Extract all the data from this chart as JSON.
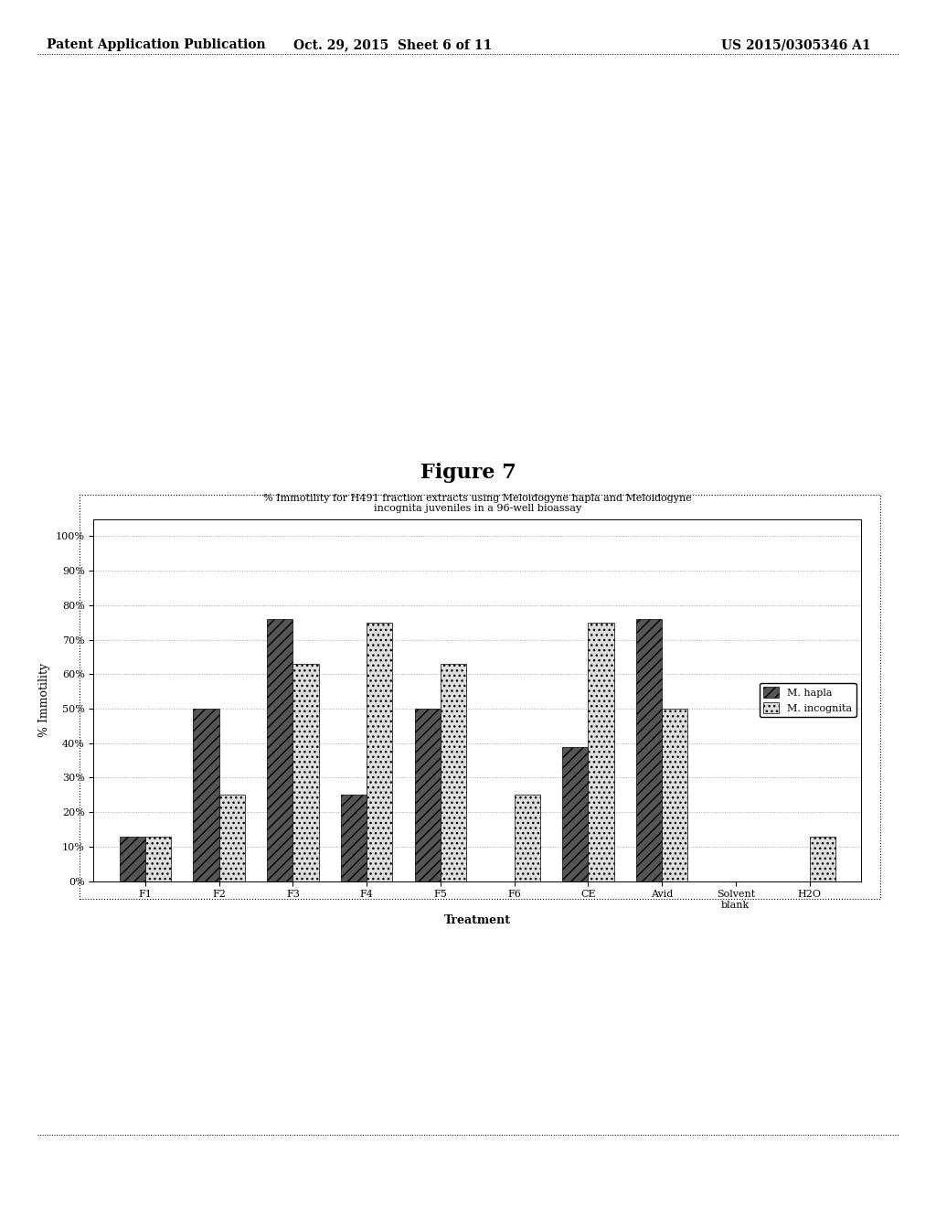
{
  "figure_title": "Figure 7",
  "chart_title": "% Immotility for H491 fraction extracts using Meloidogyne hapla and Meloidogyne\nincognita juveniles in a 96-well bioassay",
  "xlabel": "Treatment",
  "ylabel": "% Immotility",
  "categories": [
    "F1",
    "F2",
    "F3",
    "F4",
    "F5",
    "F6",
    "CE",
    "Avid",
    "Solvent\nblank",
    "H2O"
  ],
  "m_hapla": [
    13,
    50,
    76,
    25,
    50,
    0,
    39,
    76,
    0,
    0
  ],
  "m_incognita": [
    13,
    25,
    63,
    75,
    63,
    25,
    75,
    50,
    0,
    13
  ],
  "hapla_color": "#555555",
  "incognita_color": "#dddddd",
  "hapla_hatch": "///",
  "incognita_hatch": "...",
  "bar_width": 0.35,
  "ylim": [
    0,
    105
  ],
  "ytick_labels": [
    "0%",
    "10%",
    "20%",
    "30%",
    "40%",
    "50%",
    "60%",
    "70%",
    "80%",
    "90%",
    "100%"
  ],
  "ytick_values": [
    0,
    10,
    20,
    30,
    40,
    50,
    60,
    70,
    80,
    90,
    100
  ],
  "grid_color": "#aaaaaa",
  "background_color": "#ffffff",
  "header_left": "Patent Application Publication",
  "header_mid": "Oct. 29, 2015  Sheet 6 of 11",
  "header_right": "US 2015/0305346 A1",
  "legend_hapla": "M. hapla",
  "legend_incognita": "M. incognita"
}
